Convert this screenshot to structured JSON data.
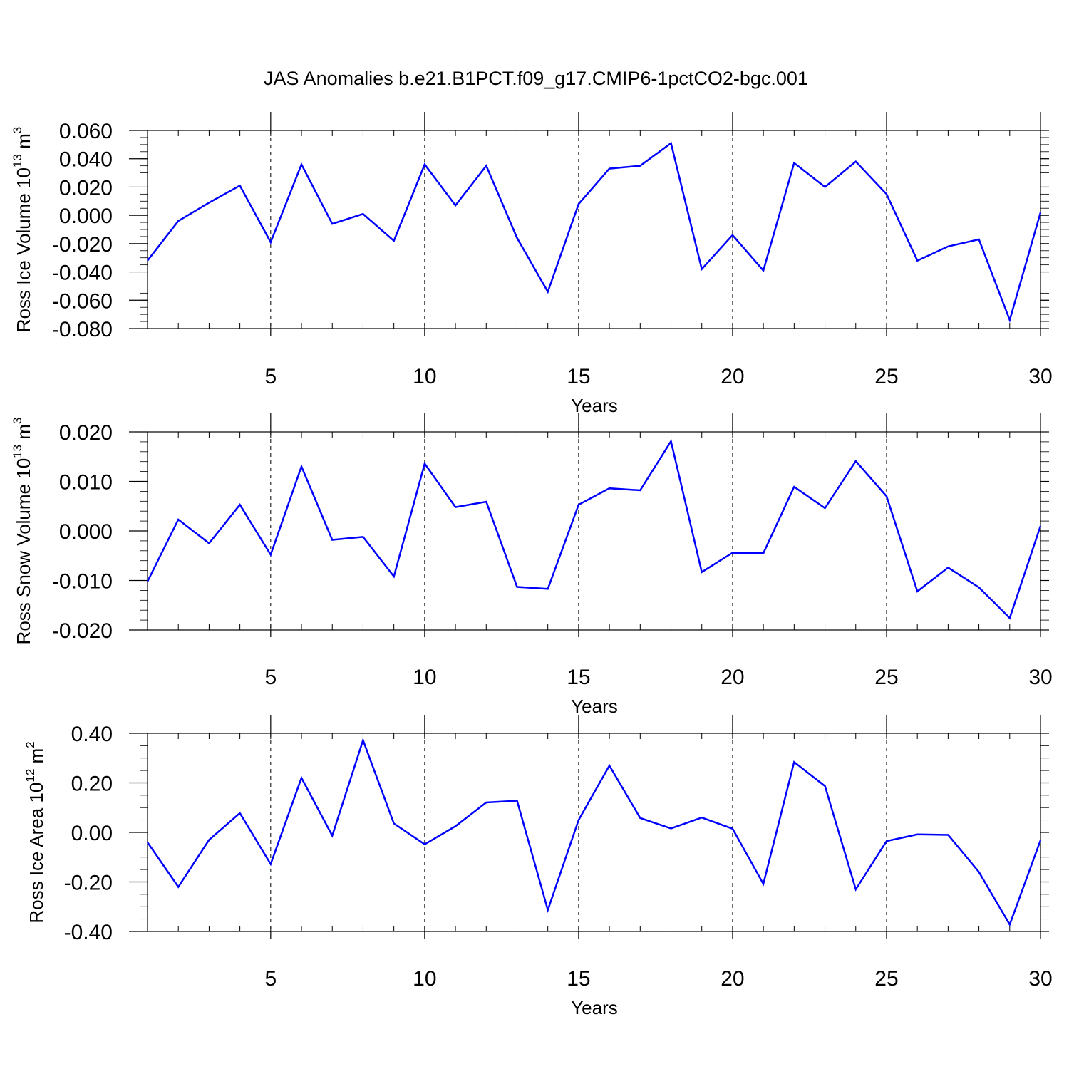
{
  "title": "JAS Anomalies b.e21.B1PCT.f09_g17.CMIP6-1pctCO2-bgc.001",
  "colors": {
    "series": "#0000ff",
    "axis": "#000000",
    "grid": "#000000"
  },
  "chart_data": [
    {
      "type": "line",
      "xlabel": "Years",
      "ylabel": {
        "main": "Ross Ice Volume 10",
        "sup1": "13",
        "mid": " m",
        "sup2": "3"
      },
      "xlim": [
        1,
        30
      ],
      "ylim": [
        -0.08,
        0.06
      ],
      "xticks": [
        5,
        10,
        15,
        20,
        25,
        30
      ],
      "xtick_labels": [
        "5",
        "10",
        "15",
        "20",
        "25",
        "30"
      ],
      "yticks": [
        0.06,
        0.04,
        0.02,
        0.0,
        -0.02,
        -0.04,
        -0.06,
        -0.08
      ],
      "ytick_labels": [
        "0.060",
        "0.040",
        "0.020",
        "0.000",
        "-0.020",
        "-0.040",
        "-0.060",
        "-0.080"
      ],
      "grid": "vertical dashed at x ticks",
      "x": [
        1,
        2,
        3,
        4,
        5,
        6,
        7,
        8,
        9,
        10,
        11,
        12,
        13,
        14,
        15,
        16,
        17,
        18,
        19,
        20,
        21,
        22,
        23,
        24,
        25,
        26,
        27,
        28,
        29,
        30
      ],
      "values": [
        -0.032,
        -0.004,
        0.009,
        0.021,
        -0.019,
        0.036,
        -0.006,
        0.001,
        -0.018,
        0.036,
        0.007,
        0.035,
        -0.016,
        -0.054,
        0.008,
        0.033,
        0.035,
        0.051,
        -0.038,
        -0.014,
        -0.039,
        0.037,
        0.02,
        0.038,
        0.015,
        -0.032,
        -0.022,
        -0.017,
        -0.074,
        0.002
      ]
    },
    {
      "type": "line",
      "xlabel": "Years",
      "ylabel": {
        "main": "Ross Snow Volume 10",
        "sup1": "13",
        "mid": " m",
        "sup2": "3"
      },
      "xlim": [
        1,
        30
      ],
      "ylim": [
        -0.02,
        0.02
      ],
      "xticks": [
        5,
        10,
        15,
        20,
        25,
        30
      ],
      "xtick_labels": [
        "5",
        "10",
        "15",
        "20",
        "25",
        "30"
      ],
      "yticks": [
        0.02,
        0.01,
        0.0,
        -0.01,
        -0.02
      ],
      "ytick_labels": [
        "0.020",
        "0.010",
        "0.000",
        "-0.010",
        "-0.020"
      ],
      "grid": "vertical dashed at x ticks",
      "x": [
        1,
        2,
        3,
        4,
        5,
        6,
        7,
        8,
        9,
        10,
        11,
        12,
        13,
        14,
        15,
        16,
        17,
        18,
        19,
        20,
        21,
        22,
        23,
        24,
        25,
        26,
        27,
        28,
        29,
        30
      ],
      "values": [
        -0.0102,
        0.0023,
        -0.0025,
        0.0053,
        -0.0048,
        0.013,
        -0.0018,
        -0.0012,
        -0.0092,
        0.0136,
        0.0048,
        0.0059,
        -0.0113,
        -0.0117,
        0.0053,
        0.0086,
        0.0082,
        0.0181,
        -0.0083,
        -0.0044,
        -0.0045,
        0.0089,
        0.0046,
        0.0141,
        0.007,
        -0.0122,
        -0.0074,
        -0.0114,
        -0.0176,
        0.001
      ]
    },
    {
      "type": "line",
      "xlabel": "Years",
      "ylabel": {
        "main": "Ross Ice Area 10",
        "sup1": "12",
        "mid": " m",
        "sup2": "2"
      },
      "xlim": [
        1,
        30
      ],
      "ylim": [
        -0.4,
        0.4
      ],
      "xticks": [
        5,
        10,
        15,
        20,
        25,
        30
      ],
      "xtick_labels": [
        "5",
        "10",
        "15",
        "20",
        "25",
        "30"
      ],
      "yticks": [
        0.4,
        0.2,
        0.0,
        -0.2,
        -0.4
      ],
      "ytick_labels": [
        "0.40",
        "0.20",
        "0.00",
        "-0.20",
        "-0.40"
      ],
      "grid": "vertical dashed at x ticks",
      "x": [
        1,
        2,
        3,
        4,
        5,
        6,
        7,
        8,
        9,
        10,
        11,
        12,
        13,
        14,
        15,
        16,
        17,
        18,
        19,
        20,
        21,
        22,
        23,
        24,
        25,
        26,
        27,
        28,
        29,
        30
      ],
      "values": [
        -0.04,
        -0.22,
        -0.03,
        0.078,
        -0.128,
        0.22,
        -0.013,
        0.372,
        0.036,
        -0.048,
        0.025,
        0.121,
        0.128,
        -0.313,
        0.05,
        0.27,
        0.058,
        0.016,
        0.06,
        0.015,
        -0.208,
        0.284,
        0.187,
        -0.23,
        -0.035,
        -0.008,
        -0.01,
        -0.16,
        -0.372,
        -0.032
      ]
    }
  ]
}
